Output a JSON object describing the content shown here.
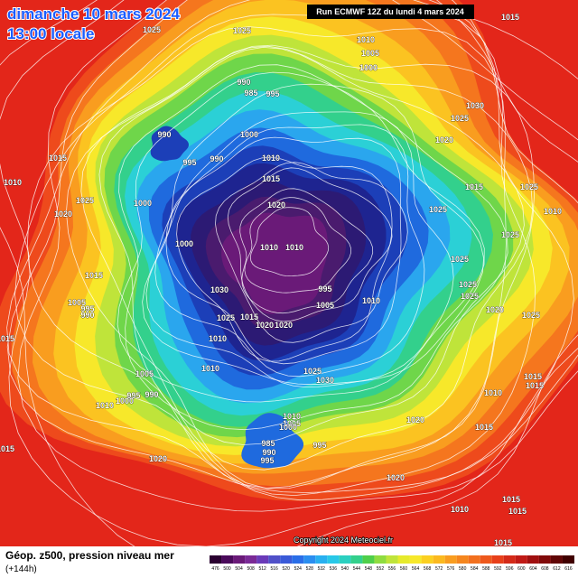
{
  "header": {
    "date": "dimanche 10 mars 2024",
    "time": "13:00 locale",
    "run": "Run ECMWF 12Z du lundi 4 mars 2024"
  },
  "footer": {
    "title": "Géop. z500, pression niveau mer",
    "lead": "(+144h)",
    "copyright": "Copyright 2024 Meteociel.fr"
  },
  "colorbar": {
    "ticks": [
      476,
      500,
      504,
      508,
      512,
      516,
      520,
      524,
      528,
      532,
      536,
      540,
      544,
      548,
      552,
      556,
      560,
      564,
      568,
      572,
      576,
      580,
      584,
      588,
      592,
      596,
      600,
      604,
      608,
      612,
      616
    ]
  },
  "isobar_labels": [
    "1025",
    "1025",
    "1010",
    "1005",
    "1000",
    "1015",
    "990",
    "985",
    "995",
    "1030",
    "1025",
    "990",
    "1000",
    "1020",
    "995",
    "990",
    "1010",
    "1015",
    "1015",
    "1010",
    "1025",
    "1015",
    "1025",
    "1000",
    "1020",
    "1010",
    "1020",
    "1025",
    "1025",
    "1000",
    "1010",
    "1010",
    "1025",
    "1015",
    "995",
    "1030",
    "1005",
    "1010",
    "1025",
    "1025",
    "1005",
    "995",
    "990",
    "1025",
    "1015",
    "1020",
    "1020",
    "1020",
    "1025",
    "1010",
    "1015",
    "1010",
    "1025",
    "1030",
    "1005",
    "990",
    "995",
    "1000",
    "1010",
    "1015",
    "1015",
    "1010",
    "1010",
    "1005",
    "1000",
    "1020",
    "1015",
    "985",
    "990",
    "995",
    "995",
    "1020",
    "1015",
    "1020",
    "1010",
    "1015",
    "1015",
    "1015"
  ]
}
